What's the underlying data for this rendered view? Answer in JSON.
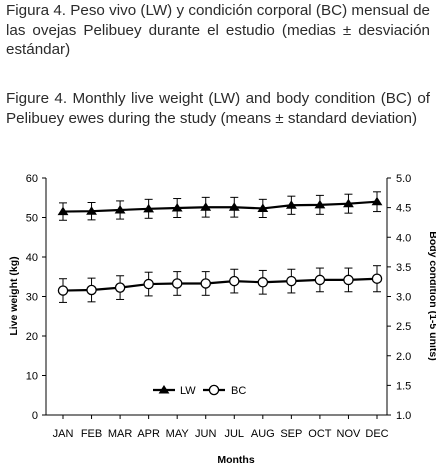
{
  "captions": {
    "spanish": "Figura 4. Peso vivo (LW) y condición corporal (BC) mensual de las ovejas Pelibuey durante el estudio (medias ± desviación estándar)",
    "english": "Figure 4. Monthly live weight (LW) and body condition (BC) of Pelibuey ewes during the study (means ± standard deviation)"
  },
  "chart_data": {
    "type": "line",
    "title": "",
    "xlabel": "Months",
    "ylabel": "Live weight (kg)",
    "y2label": "Body condition (1-5 units)",
    "categories": [
      "JAN",
      "FEB",
      "MAR",
      "APR",
      "MAY",
      "JUN",
      "JUL",
      "AUG",
      "SEP",
      "OCT",
      "NOV",
      "DEC"
    ],
    "ylim": [
      0,
      60
    ],
    "y2lim": [
      1.0,
      5.0
    ],
    "yticks": [
      "0",
      "10",
      "20",
      "30",
      "40",
      "50",
      "60"
    ],
    "y2ticks": [
      "1.0",
      "1.5",
      "2.0",
      "2.5",
      "3.0",
      "3.5",
      "4.0",
      "4.5",
      "5.0"
    ],
    "grid": false,
    "legend_position": "bottom-center",
    "series": [
      {
        "name": "LW",
        "axis": "left",
        "marker": "filled-triangle",
        "values": [
          51.5,
          51.6,
          51.9,
          52.2,
          52.4,
          52.6,
          52.6,
          52.3,
          53.1,
          53.2,
          53.5,
          54.0
        ],
        "errors": [
          2.2,
          2.2,
          2.3,
          2.4,
          2.4,
          2.5,
          2.5,
          2.3,
          2.3,
          2.4,
          2.4,
          2.5
        ]
      },
      {
        "name": "BC",
        "axis": "right",
        "marker": "open-circle",
        "values": [
          3.1,
          3.11,
          3.15,
          3.21,
          3.22,
          3.22,
          3.26,
          3.24,
          3.26,
          3.28,
          3.28,
          3.3
        ],
        "errors": [
          0.2,
          0.2,
          0.2,
          0.2,
          0.2,
          0.2,
          0.2,
          0.2,
          0.2,
          0.2,
          0.2,
          0.22
        ]
      }
    ],
    "colors": {
      "line": "#000000",
      "marker_fill": "#ffffff"
    }
  }
}
